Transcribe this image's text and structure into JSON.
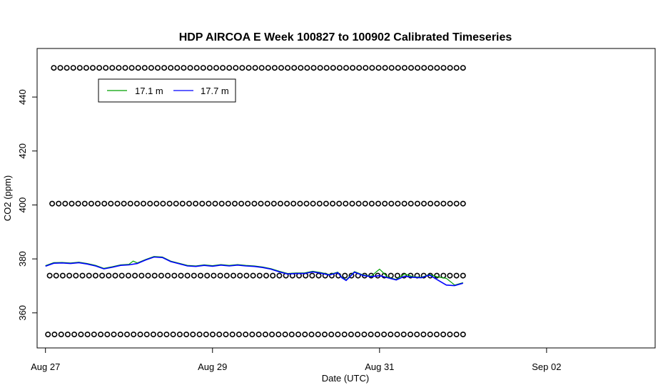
{
  "chart_data": {
    "type": "line",
    "title": "HDP AIRCOA E  Week 100827 to 100902  Calibrated Timeseries",
    "xlabel": "Date (UTC)",
    "ylabel": "CO2 (ppm)",
    "xlim": [
      -0.1,
      7.3
    ],
    "ylim": [
      347,
      458
    ],
    "x_ticks": [
      {
        "x": 0,
        "label": "Aug 27"
      },
      {
        "x": 2,
        "label": "Aug 29"
      },
      {
        "x": 4,
        "label": "Aug 31"
      },
      {
        "x": 6,
        "label": "Sep 02"
      }
    ],
    "y_ticks": [
      360,
      380,
      400,
      420,
      440
    ],
    "x_unit": "days since Aug 27 00:00 UTC",
    "legend": {
      "position": "top-left",
      "entries": [
        "17.1 m",
        "17.7 m"
      ]
    },
    "colors": {
      "series_17_1": "#00a000",
      "series_17_7": "#0000ff",
      "markers": "#000000"
    },
    "series": [
      {
        "name": "17.1 m",
        "color": "#00a000",
        "x": [
          0.0,
          0.1,
          0.2,
          0.3,
          0.4,
          0.5,
          0.6,
          0.7,
          0.8,
          0.9,
          1.0,
          1.05,
          1.1,
          1.2,
          1.3,
          1.4,
          1.5,
          1.6,
          1.7,
          1.8,
          1.9,
          2.0,
          2.1,
          2.2,
          2.3,
          2.4,
          2.5,
          2.6,
          2.7,
          2.8,
          2.9,
          3.0,
          3.1,
          3.2,
          3.3,
          3.4,
          3.5,
          3.55,
          3.6,
          3.7,
          3.8,
          3.9,
          4.0,
          4.1,
          4.2,
          4.3,
          4.4,
          4.5,
          4.6,
          4.7,
          4.8,
          4.9,
          5.0
        ],
        "values": [
          377.5,
          378.6,
          378.7,
          378.5,
          378.8,
          378.3,
          377.6,
          376.5,
          377.1,
          377.8,
          378.0,
          379.2,
          378.5,
          379.8,
          380.9,
          380.7,
          379.2,
          378.4,
          377.6,
          377.4,
          377.8,
          377.5,
          377.9,
          377.6,
          377.9,
          377.6,
          377.4,
          377.0,
          376.4,
          375.4,
          374.6,
          374.8,
          374.8,
          375.4,
          374.9,
          374.2,
          375.1,
          373.2,
          372.2,
          375.3,
          374.1,
          373.6,
          376.2,
          373.2,
          372.4,
          374.4,
          373.4,
          373.2,
          374.2,
          373.3,
          372.8,
          370.3,
          371.2
        ]
      },
      {
        "name": "17.7 m",
        "color": "#0000ff",
        "x": [
          0.0,
          0.1,
          0.2,
          0.3,
          0.4,
          0.5,
          0.6,
          0.7,
          0.8,
          0.9,
          1.0,
          1.1,
          1.2,
          1.3,
          1.4,
          1.5,
          1.6,
          1.7,
          1.8,
          1.9,
          2.0,
          2.1,
          2.2,
          2.3,
          2.4,
          2.5,
          2.6,
          2.7,
          2.8,
          2.9,
          3.0,
          3.1,
          3.2,
          3.3,
          3.4,
          3.5,
          3.55,
          3.6,
          3.7,
          3.8,
          3.9,
          4.0,
          4.1,
          4.2,
          4.3,
          4.4,
          4.5,
          4.6,
          4.7,
          4.8,
          4.9,
          5.0
        ],
        "values": [
          377.3,
          378.4,
          378.5,
          378.3,
          378.6,
          378.1,
          377.4,
          376.3,
          376.9,
          377.6,
          377.8,
          378.3,
          379.6,
          380.7,
          380.5,
          379.0,
          378.2,
          377.4,
          377.2,
          377.6,
          377.3,
          377.7,
          377.4,
          377.7,
          377.4,
          377.2,
          376.8,
          376.2,
          375.2,
          374.4,
          374.6,
          374.6,
          375.2,
          374.7,
          374.0,
          374.9,
          373.0,
          372.0,
          375.1,
          373.9,
          373.4,
          373.8,
          373.0,
          372.2,
          373.6,
          373.2,
          373.0,
          374.0,
          372.1,
          370.3,
          370.1,
          371.0
        ]
      }
    ],
    "marker_rows": [
      {
        "y": 450.8,
        "x_start": 0.1,
        "x_end": 5.0,
        "count": 64
      },
      {
        "y": 400.5,
        "x_start": 0.08,
        "x_end": 5.0,
        "count": 64
      },
      {
        "y": 373.8,
        "x_start": 0.05,
        "x_end": 5.0,
        "count": 64
      },
      {
        "y": 352.0,
        "x_start": 0.03,
        "x_end": 5.0,
        "count": 64
      }
    ]
  }
}
